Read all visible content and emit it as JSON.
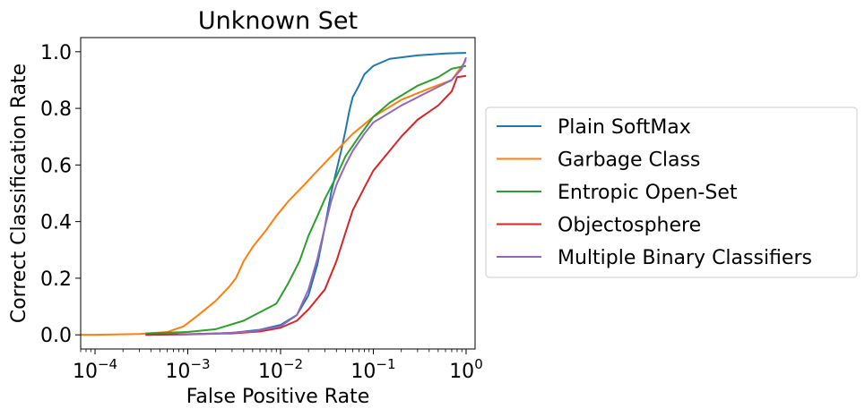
{
  "chart_data": {
    "type": "line",
    "title": "Unknown Set",
    "xlabel": "False Positive Rate",
    "ylabel": "Correct Classification Rate",
    "xscale": "log",
    "xlim": [
      7e-05,
      1.25
    ],
    "ylim": [
      -0.05,
      1.05
    ],
    "xticks": [
      {
        "value": 0.0001,
        "base": "10",
        "exp": "−4"
      },
      {
        "value": 0.001,
        "base": "10",
        "exp": "−3"
      },
      {
        "value": 0.01,
        "base": "10",
        "exp": "−2"
      },
      {
        "value": 0.1,
        "base": "10",
        "exp": "−1"
      },
      {
        "value": 1,
        "base": "10",
        "exp": "0"
      }
    ],
    "yticks": [
      {
        "value": 0.0,
        "label": "0.0"
      },
      {
        "value": 0.2,
        "label": "0.2"
      },
      {
        "value": 0.4,
        "label": "0.4"
      },
      {
        "value": 0.6,
        "label": "0.6"
      },
      {
        "value": 0.8,
        "label": "0.8"
      },
      {
        "value": 1.0,
        "label": "1.0"
      }
    ],
    "grid": false,
    "legend_position": "outside-right",
    "series": [
      {
        "name": "Plain SoftMax",
        "color": "#1f77b4",
        "points": [
          [
            0.00035,
            0.0
          ],
          [
            0.001,
            0.002
          ],
          [
            0.003,
            0.007
          ],
          [
            0.006,
            0.018
          ],
          [
            0.01,
            0.035
          ],
          [
            0.015,
            0.07
          ],
          [
            0.02,
            0.14
          ],
          [
            0.025,
            0.25
          ],
          [
            0.03,
            0.38
          ],
          [
            0.035,
            0.5
          ],
          [
            0.04,
            0.58
          ],
          [
            0.045,
            0.65
          ],
          [
            0.05,
            0.72
          ],
          [
            0.055,
            0.79
          ],
          [
            0.06,
            0.84
          ],
          [
            0.07,
            0.88
          ],
          [
            0.08,
            0.92
          ],
          [
            0.1,
            0.95
          ],
          [
            0.15,
            0.975
          ],
          [
            0.3,
            0.987
          ],
          [
            0.6,
            0.994
          ],
          [
            1.0,
            0.996
          ]
        ]
      },
      {
        "name": "Garbage Class",
        "color": "#ff7f0e",
        "points": [
          [
            7e-05,
            0.0
          ],
          [
            0.0001,
            0.0
          ],
          [
            0.0003,
            0.003
          ],
          [
            0.0006,
            0.01
          ],
          [
            0.0009,
            0.03
          ],
          [
            0.0013,
            0.07
          ],
          [
            0.002,
            0.12
          ],
          [
            0.0028,
            0.17
          ],
          [
            0.0033,
            0.2
          ],
          [
            0.004,
            0.26
          ],
          [
            0.005,
            0.31
          ],
          [
            0.007,
            0.37
          ],
          [
            0.009,
            0.42
          ],
          [
            0.012,
            0.47
          ],
          [
            0.018,
            0.53
          ],
          [
            0.025,
            0.58
          ],
          [
            0.04,
            0.65
          ],
          [
            0.06,
            0.71
          ],
          [
            0.1,
            0.77
          ],
          [
            0.2,
            0.83
          ],
          [
            0.4,
            0.87
          ],
          [
            0.7,
            0.9
          ],
          [
            1.0,
            0.97
          ]
        ]
      },
      {
        "name": "Entropic Open-Set",
        "color": "#2ca02c",
        "points": [
          [
            0.00035,
            0.005
          ],
          [
            0.001,
            0.01
          ],
          [
            0.002,
            0.02
          ],
          [
            0.004,
            0.05
          ],
          [
            0.006,
            0.08
          ],
          [
            0.009,
            0.11
          ],
          [
            0.012,
            0.18
          ],
          [
            0.016,
            0.26
          ],
          [
            0.02,
            0.35
          ],
          [
            0.025,
            0.42
          ],
          [
            0.03,
            0.48
          ],
          [
            0.04,
            0.56
          ],
          [
            0.05,
            0.63
          ],
          [
            0.07,
            0.7
          ],
          [
            0.1,
            0.77
          ],
          [
            0.15,
            0.82
          ],
          [
            0.3,
            0.88
          ],
          [
            0.5,
            0.91
          ],
          [
            0.7,
            0.94
          ],
          [
            1.0,
            0.95
          ]
        ]
      },
      {
        "name": "Objectosphere",
        "color": "#d62728",
        "points": [
          [
            0.00035,
            0.0
          ],
          [
            0.001,
            0.002
          ],
          [
            0.003,
            0.005
          ],
          [
            0.006,
            0.012
          ],
          [
            0.01,
            0.025
          ],
          [
            0.015,
            0.05
          ],
          [
            0.02,
            0.09
          ],
          [
            0.03,
            0.16
          ],
          [
            0.04,
            0.26
          ],
          [
            0.05,
            0.36
          ],
          [
            0.06,
            0.44
          ],
          [
            0.08,
            0.52
          ],
          [
            0.1,
            0.58
          ],
          [
            0.15,
            0.65
          ],
          [
            0.2,
            0.7
          ],
          [
            0.3,
            0.76
          ],
          [
            0.5,
            0.81
          ],
          [
            0.7,
            0.86
          ],
          [
            0.8,
            0.91
          ],
          [
            1.0,
            0.915
          ]
        ]
      },
      {
        "name": "Multiple Binary Classifiers",
        "color": "#9467bd",
        "points": [
          [
            0.0008,
            0.0
          ],
          [
            0.002,
            0.004
          ],
          [
            0.005,
            0.012
          ],
          [
            0.01,
            0.03
          ],
          [
            0.015,
            0.07
          ],
          [
            0.02,
            0.16
          ],
          [
            0.025,
            0.27
          ],
          [
            0.03,
            0.38
          ],
          [
            0.035,
            0.47
          ],
          [
            0.04,
            0.53
          ],
          [
            0.05,
            0.6
          ],
          [
            0.06,
            0.65
          ],
          [
            0.08,
            0.71
          ],
          [
            0.1,
            0.75
          ],
          [
            0.2,
            0.81
          ],
          [
            0.4,
            0.86
          ],
          [
            0.7,
            0.9
          ],
          [
            0.9,
            0.94
          ],
          [
            1.0,
            0.98
          ]
        ]
      }
    ]
  }
}
